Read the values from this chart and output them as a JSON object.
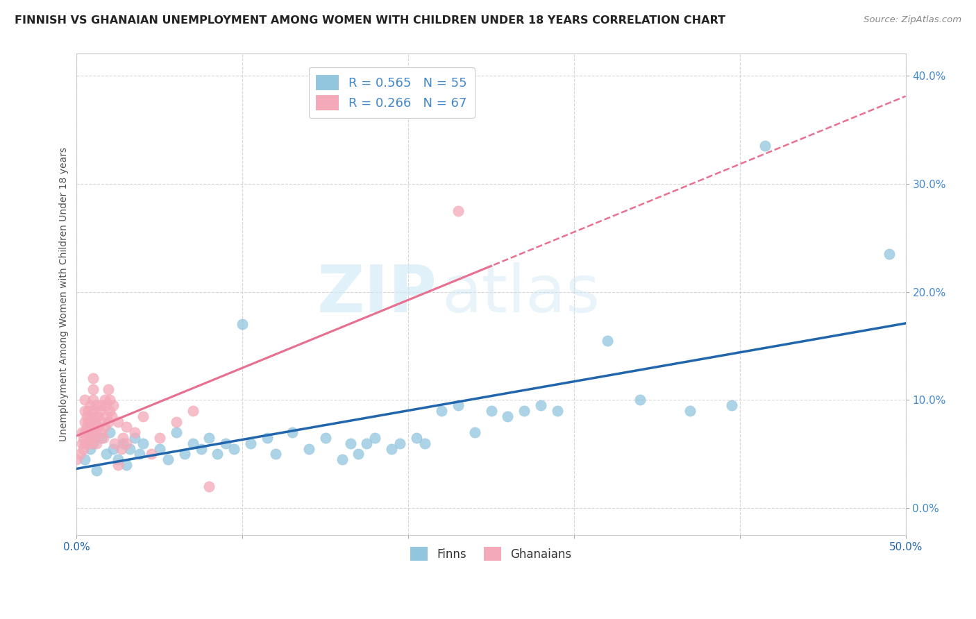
{
  "title": "FINNISH VS GHANAIAN UNEMPLOYMENT AMONG WOMEN WITH CHILDREN UNDER 18 YEARS CORRELATION CHART",
  "source": "Source: ZipAtlas.com",
  "ylabel": "Unemployment Among Women with Children Under 18 years",
  "finns_color": "#92c5de",
  "ghanaians_color": "#f4a9b8",
  "finns_line_color": "#2166ac",
  "ghanaians_line_color": "#e87090",
  "finns_R": 0.565,
  "finns_N": 55,
  "ghanaians_R": 0.266,
  "ghanaians_N": 67,
  "legend_finns_label": "Finns",
  "legend_ghanaians_label": "Ghanaians",
  "watermark_zip": "ZIP",
  "watermark_atlas": "atlas",
  "background_color": "#ffffff",
  "grid_color": "#cccccc",
  "ytick_color": "#4488cc",
  "xlim": [
    0.0,
    0.5
  ],
  "ylim": [
    -0.025,
    0.42
  ],
  "finns_scatter": [
    [
      0.005,
      0.045
    ],
    [
      0.008,
      0.055
    ],
    [
      0.01,
      0.06
    ],
    [
      0.012,
      0.035
    ],
    [
      0.015,
      0.065
    ],
    [
      0.018,
      0.05
    ],
    [
      0.02,
      0.07
    ],
    [
      0.022,
      0.055
    ],
    [
      0.025,
      0.045
    ],
    [
      0.028,
      0.06
    ],
    [
      0.03,
      0.04
    ],
    [
      0.032,
      0.055
    ],
    [
      0.035,
      0.065
    ],
    [
      0.038,
      0.05
    ],
    [
      0.04,
      0.06
    ],
    [
      0.05,
      0.055
    ],
    [
      0.055,
      0.045
    ],
    [
      0.06,
      0.07
    ],
    [
      0.065,
      0.05
    ],
    [
      0.07,
      0.06
    ],
    [
      0.075,
      0.055
    ],
    [
      0.08,
      0.065
    ],
    [
      0.085,
      0.05
    ],
    [
      0.09,
      0.06
    ],
    [
      0.095,
      0.055
    ],
    [
      0.1,
      0.17
    ],
    [
      0.105,
      0.06
    ],
    [
      0.115,
      0.065
    ],
    [
      0.12,
      0.05
    ],
    [
      0.13,
      0.07
    ],
    [
      0.14,
      0.055
    ],
    [
      0.15,
      0.065
    ],
    [
      0.16,
      0.045
    ],
    [
      0.165,
      0.06
    ],
    [
      0.17,
      0.05
    ],
    [
      0.175,
      0.06
    ],
    [
      0.18,
      0.065
    ],
    [
      0.19,
      0.055
    ],
    [
      0.195,
      0.06
    ],
    [
      0.205,
      0.065
    ],
    [
      0.21,
      0.06
    ],
    [
      0.22,
      0.09
    ],
    [
      0.23,
      0.095
    ],
    [
      0.24,
      0.07
    ],
    [
      0.25,
      0.09
    ],
    [
      0.26,
      0.085
    ],
    [
      0.27,
      0.09
    ],
    [
      0.28,
      0.095
    ],
    [
      0.29,
      0.09
    ],
    [
      0.32,
      0.155
    ],
    [
      0.34,
      0.1
    ],
    [
      0.37,
      0.09
    ],
    [
      0.395,
      0.095
    ],
    [
      0.415,
      0.335
    ],
    [
      0.49,
      0.235
    ]
  ],
  "ghanaians_scatter": [
    [
      0.0,
      0.045
    ],
    [
      0.002,
      0.05
    ],
    [
      0.003,
      0.06
    ],
    [
      0.003,
      0.07
    ],
    [
      0.004,
      0.055
    ],
    [
      0.004,
      0.065
    ],
    [
      0.005,
      0.06
    ],
    [
      0.005,
      0.07
    ],
    [
      0.005,
      0.08
    ],
    [
      0.005,
      0.09
    ],
    [
      0.005,
      0.1
    ],
    [
      0.006,
      0.075
    ],
    [
      0.006,
      0.06
    ],
    [
      0.006,
      0.085
    ],
    [
      0.007,
      0.07
    ],
    [
      0.007,
      0.09
    ],
    [
      0.007,
      0.08
    ],
    [
      0.008,
      0.065
    ],
    [
      0.008,
      0.075
    ],
    [
      0.008,
      0.085
    ],
    [
      0.008,
      0.095
    ],
    [
      0.009,
      0.06
    ],
    [
      0.009,
      0.07
    ],
    [
      0.009,
      0.08
    ],
    [
      0.01,
      0.065
    ],
    [
      0.01,
      0.075
    ],
    [
      0.01,
      0.09
    ],
    [
      0.01,
      0.1
    ],
    [
      0.01,
      0.11
    ],
    [
      0.01,
      0.12
    ],
    [
      0.011,
      0.07
    ],
    [
      0.011,
      0.08
    ],
    [
      0.012,
      0.085
    ],
    [
      0.012,
      0.095
    ],
    [
      0.012,
      0.06
    ],
    [
      0.013,
      0.075
    ],
    [
      0.013,
      0.085
    ],
    [
      0.014,
      0.09
    ],
    [
      0.015,
      0.095
    ],
    [
      0.015,
      0.07
    ],
    [
      0.015,
      0.08
    ],
    [
      0.016,
      0.065
    ],
    [
      0.017,
      0.075
    ],
    [
      0.017,
      0.1
    ],
    [
      0.018,
      0.085
    ],
    [
      0.018,
      0.095
    ],
    [
      0.019,
      0.08
    ],
    [
      0.019,
      0.11
    ],
    [
      0.02,
      0.09
    ],
    [
      0.02,
      0.1
    ],
    [
      0.021,
      0.085
    ],
    [
      0.022,
      0.095
    ],
    [
      0.023,
      0.06
    ],
    [
      0.025,
      0.08
    ],
    [
      0.025,
      0.04
    ],
    [
      0.027,
      0.055
    ],
    [
      0.028,
      0.065
    ],
    [
      0.03,
      0.06
    ],
    [
      0.03,
      0.075
    ],
    [
      0.035,
      0.07
    ],
    [
      0.04,
      0.085
    ],
    [
      0.045,
      0.05
    ],
    [
      0.05,
      0.065
    ],
    [
      0.06,
      0.08
    ],
    [
      0.07,
      0.09
    ],
    [
      0.08,
      0.02
    ],
    [
      0.23,
      0.275
    ]
  ]
}
